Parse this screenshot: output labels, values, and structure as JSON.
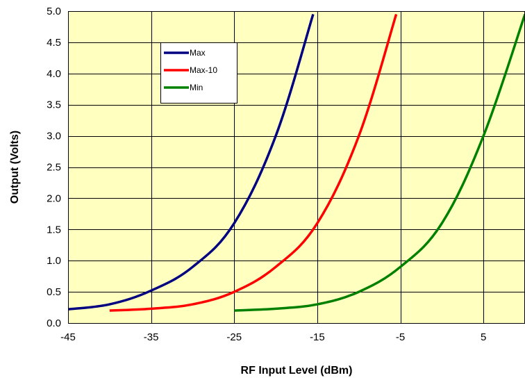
{
  "chart_data": {
    "type": "line",
    "title": "",
    "xlabel": "RF Input Level (dBm)",
    "ylabel": "Output (Volts)",
    "xlim": [
      -45,
      10
    ],
    "ylim": [
      0,
      5
    ],
    "x_ticks": [
      -45,
      -35,
      -25,
      -15,
      -5,
      5
    ],
    "x_tick_labels": [
      "-45",
      "-35",
      "-25",
      "-15",
      "-5",
      "5"
    ],
    "y_ticks": [
      0,
      0.5,
      1,
      1.5,
      2,
      2.5,
      3,
      3.5,
      4,
      4.5,
      5
    ],
    "y_tick_labels": [
      "0.0",
      "0.5",
      "1.0",
      "1.5",
      "2.0",
      "2.5",
      "3.0",
      "3.5",
      "4.0",
      "4.5",
      "5.0"
    ],
    "grid": true,
    "legend_position": "top-center-left",
    "plot_background": "#ffffc0",
    "series": [
      {
        "name": "Max",
        "color": "#000080",
        "x": [
          -45,
          -40,
          -35,
          -30,
          -25,
          -20,
          -15.5
        ],
        "y": [
          0.22,
          0.3,
          0.52,
          0.9,
          1.6,
          3.0,
          4.95
        ]
      },
      {
        "name": "Max-10",
        "color": "#ff0000",
        "x": [
          -40,
          -35,
          -30,
          -25,
          -20,
          -15,
          -10,
          -5.5
        ],
        "y": [
          0.2,
          0.23,
          0.3,
          0.5,
          0.9,
          1.6,
          3.0,
          4.95
        ]
      },
      {
        "name": "Min",
        "color": "#008000",
        "x": [
          -25,
          -20,
          -15,
          -10,
          -5,
          0,
          5,
          10
        ],
        "y": [
          0.2,
          0.23,
          0.3,
          0.5,
          0.9,
          1.6,
          3.0,
          4.95
        ]
      }
    ]
  }
}
